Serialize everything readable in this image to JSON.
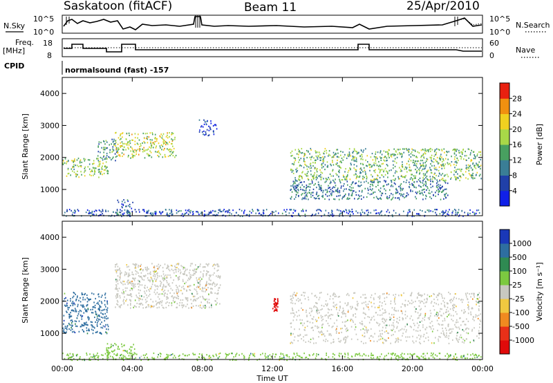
{
  "header": {
    "station": "Saskatoon (fitACF)",
    "beam": "Beam 11",
    "date": "25/Apr/2010"
  },
  "strips": {
    "nsky_label": "N.Sky",
    "nsky_ticks": [
      "10^5",
      "10^0"
    ],
    "nsearch_label": "N.Search",
    "nsearch_ticks": [
      "10^5",
      "10^0"
    ],
    "freq_label_1": "Freq.",
    "freq_label_2": "[MHz]",
    "freq_ticks": [
      "18",
      "8"
    ],
    "nave_label": "Nave",
    "nave_ticks": [
      "60",
      "0"
    ],
    "cpid_label": "CPID",
    "cpid_value": "normalsound (fast) -157"
  },
  "chart_data": [
    {
      "type": "heatmap",
      "panel": "power",
      "xlabel": "Time UT",
      "ylabel": "Slant Range [km]",
      "xlim": [
        0,
        24
      ],
      "ylim": [
        180,
        4500
      ],
      "x_ticks": [
        "00:00",
        "04:00",
        "08:00",
        "12:00",
        "16:00",
        "20:00",
        "00:00"
      ],
      "y_ticks": [
        1000,
        2000,
        3000,
        4000
      ],
      "colorbar": {
        "label": "Power [dB]",
        "ticks": [
          "4",
          "8",
          "12",
          "16",
          "20",
          "24",
          "28"
        ],
        "colors": [
          "#1020e8",
          "#2040a8",
          "#3a7e96",
          "#48a060",
          "#a8d848",
          "#f0d020",
          "#f09010",
          "#e82010"
        ]
      },
      "echo_regions": [
        {
          "t_start": 0.0,
          "t_end": 2.6,
          "r_min": 1400,
          "r_max": 2000,
          "peak_db": 24
        },
        {
          "t_start": 2.0,
          "t_end": 3.1,
          "r_min": 1900,
          "r_max": 2600,
          "peak_db": 18
        },
        {
          "t_start": 3.0,
          "t_end": 6.5,
          "r_min": 2000,
          "r_max": 2800,
          "peak_db": 26
        },
        {
          "t_start": 3.0,
          "t_end": 4.0,
          "r_min": 200,
          "r_max": 700,
          "peak_db": 14
        },
        {
          "t_start": 7.8,
          "t_end": 8.8,
          "r_min": 2700,
          "r_max": 3200,
          "peak_db": 10
        },
        {
          "t_start": 13.0,
          "t_end": 23.9,
          "r_min": 1300,
          "r_max": 2300,
          "peak_db": 22
        },
        {
          "t_start": 13.0,
          "t_end": 22.0,
          "r_min": 700,
          "r_max": 1300,
          "peak_db": 16
        },
        {
          "t_start": 0.0,
          "t_end": 23.9,
          "r_min": 180,
          "r_max": 400,
          "peak_db": 12
        }
      ]
    },
    {
      "type": "heatmap",
      "panel": "velocity",
      "xlabel": "Time UT",
      "ylabel": "Slant Range [km]",
      "xlim": [
        0,
        24
      ],
      "ylim": [
        180,
        4500
      ],
      "x_ticks": [
        "00:00",
        "04:00",
        "08:00",
        "12:00",
        "16:00",
        "20:00",
        "00:00"
      ],
      "y_ticks": [
        1000,
        2000,
        3000,
        4000
      ],
      "colorbar": {
        "label": "Velocity [m s⁻¹]",
        "ticks": [
          "1000",
          "500",
          "100",
          "25",
          "-25",
          "-100",
          "-500",
          "-1000"
        ],
        "colors": [
          "#1a38b8",
          "#2e6ea0",
          "#2f8a52",
          "#7cc940",
          "#c8c8c0",
          "#f0c840",
          "#f08a20",
          "#e83018",
          "#e00a0a"
        ]
      },
      "echo_regions": [
        {
          "t_start": 0.0,
          "t_end": 2.6,
          "r_min": 1000,
          "r_max": 2300,
          "velocity": 300
        },
        {
          "t_start": 2.5,
          "t_end": 4.2,
          "r_min": 200,
          "r_max": 700,
          "velocity": 80
        },
        {
          "t_start": 3.0,
          "t_end": 9.0,
          "r_min": 1800,
          "r_max": 3200,
          "velocity": 0
        },
        {
          "t_start": 12.0,
          "t_end": 12.3,
          "r_min": 1700,
          "r_max": 2100,
          "velocity": -800
        },
        {
          "t_start": 13.0,
          "t_end": 23.9,
          "r_min": 700,
          "r_max": 2300,
          "velocity": 0
        },
        {
          "t_start": 0.0,
          "t_end": 23.9,
          "r_min": 180,
          "r_max": 400,
          "velocity": 60
        }
      ]
    }
  ]
}
